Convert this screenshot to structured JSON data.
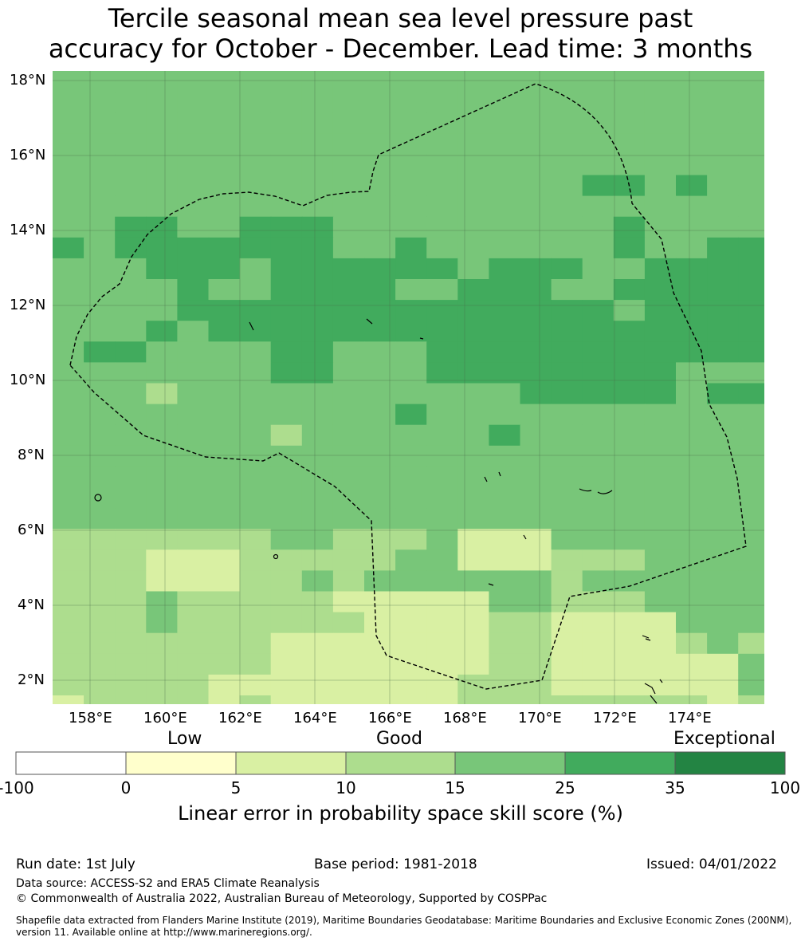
{
  "title_line1": "Tercile seasonal mean sea level pressure past",
  "title_line2": "accuracy for October - December. Lead time: 3 months",
  "lat_labels": [
    "18°N",
    "16°N",
    "14°N",
    "12°N",
    "10°N",
    "8°N",
    "6°N",
    "4°N",
    "2°N"
  ],
  "lon_labels": [
    "158°E",
    "160°E",
    "162°E",
    "164°E",
    "166°E",
    "168°E",
    "170°E",
    "172°E",
    "174°E"
  ],
  "colorbar": {
    "category_labels": [
      "Low",
      "Good",
      "Exceptional"
    ],
    "ticks": [
      "-100",
      "0",
      "5",
      "10",
      "15",
      "25",
      "35",
      "100"
    ],
    "colors": [
      "#ffffff",
      "#ffffcc",
      "#d9f0a3",
      "#addd8e",
      "#78c679",
      "#41ab5d",
      "#238443"
    ],
    "caption": "Linear error in probability space skill score (%)"
  },
  "footer": {
    "run_date": "Run date: 1st July",
    "base_period": "Base period: 1981-2018",
    "issued": "Issued: 04/01/2022",
    "data_source": "Data source: ACCESS-S2 and ERA5 Climate Reanalysis",
    "copyright": "© Commonwealth of Australia 2022, Australian Bureau of Meteorology, Supported by COSPPac",
    "shapefile_line1": "Shapefile data extracted from Flanders Marine Institute (2019), Maritime Boundaries Geodatabase: Maritime Boundaries and Exclusive Economic Zones (200NM),",
    "shapefile_line2": "version 11. Available online at http://www.marineregions.org/."
  }
}
